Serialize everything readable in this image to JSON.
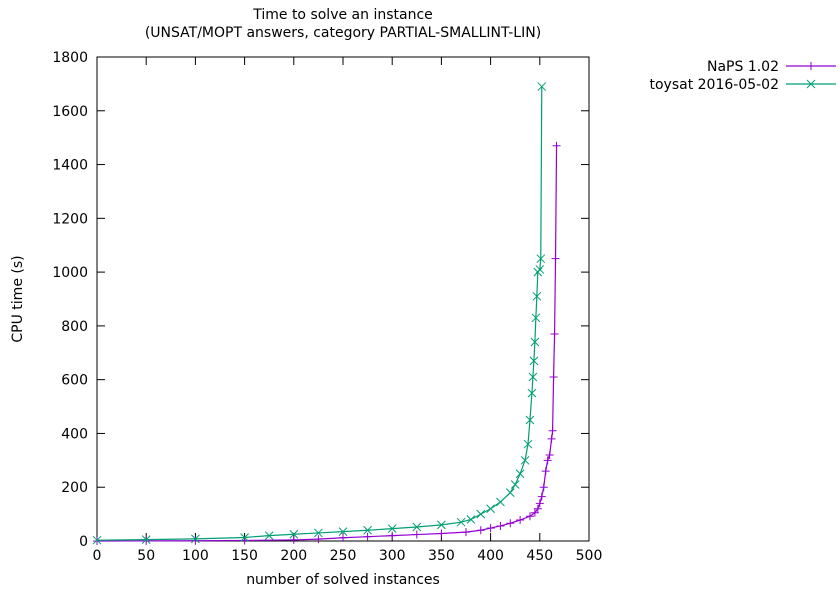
{
  "chart_data": {
    "type": "line",
    "title": "Time to solve an instance",
    "subtitle": "(UNSAT/MOPT answers, category PARTIAL-SMALLINT-LIN)",
    "xlabel": "number of solved instances",
    "ylabel": "CPU time (s)",
    "xlim": [
      0,
      500
    ],
    "ylim": [
      0,
      1800
    ],
    "xticks": [
      0,
      50,
      100,
      150,
      200,
      250,
      300,
      350,
      400,
      450,
      500
    ],
    "yticks": [
      0,
      200,
      400,
      600,
      800,
      1000,
      1200,
      1400,
      1600,
      1800
    ],
    "grid": false,
    "legend_position": "outside-top-right",
    "series": [
      {
        "name": "NaPS 1.02",
        "color": "#9400d3",
        "marker": "plus",
        "points": [
          [
            0,
            0
          ],
          [
            50,
            0.5
          ],
          [
            100,
            1
          ],
          [
            150,
            2
          ],
          [
            200,
            4
          ],
          [
            225,
            7
          ],
          [
            250,
            12
          ],
          [
            275,
            16
          ],
          [
            300,
            20
          ],
          [
            325,
            24
          ],
          [
            350,
            28
          ],
          [
            375,
            33
          ],
          [
            390,
            40
          ],
          [
            400,
            48
          ],
          [
            410,
            56
          ],
          [
            420,
            66
          ],
          [
            430,
            78
          ],
          [
            440,
            92
          ],
          [
            445,
            105
          ],
          [
            448,
            120
          ],
          [
            450,
            140
          ],
          [
            452,
            165
          ],
          [
            454,
            200
          ],
          [
            456,
            260
          ],
          [
            458,
            300
          ],
          [
            460,
            320
          ],
          [
            462,
            380
          ],
          [
            463,
            410
          ],
          [
            464,
            610
          ],
          [
            465,
            770
          ],
          [
            466,
            1050
          ],
          [
            467,
            1470
          ]
        ]
      },
      {
        "name": "toysat 2016-05-02",
        "color": "#009e73",
        "marker": "x",
        "points": [
          [
            0,
            3
          ],
          [
            50,
            5
          ],
          [
            100,
            8
          ],
          [
            150,
            13
          ],
          [
            175,
            20
          ],
          [
            200,
            25
          ],
          [
            225,
            30
          ],
          [
            250,
            35
          ],
          [
            275,
            40
          ],
          [
            300,
            46
          ],
          [
            325,
            52
          ],
          [
            350,
            60
          ],
          [
            370,
            70
          ],
          [
            380,
            80
          ],
          [
            390,
            100
          ],
          [
            400,
            120
          ],
          [
            410,
            145
          ],
          [
            420,
            180
          ],
          [
            425,
            210
          ],
          [
            430,
            250
          ],
          [
            435,
            300
          ],
          [
            438,
            360
          ],
          [
            440,
            450
          ],
          [
            442,
            550
          ],
          [
            443,
            610
          ],
          [
            444,
            670
          ],
          [
            445,
            740
          ],
          [
            446,
            830
          ],
          [
            447,
            910
          ],
          [
            448,
            1000
          ],
          [
            450,
            1010
          ],
          [
            451,
            1050
          ],
          [
            452,
            1690
          ]
        ]
      }
    ]
  }
}
